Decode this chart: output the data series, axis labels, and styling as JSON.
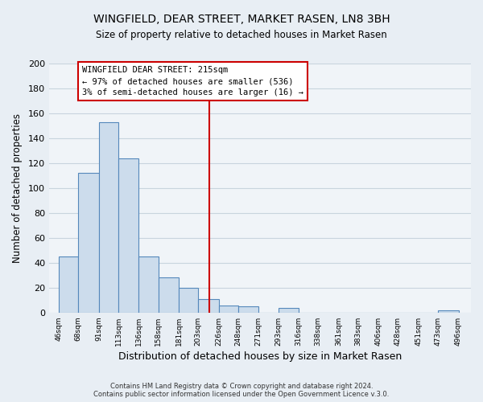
{
  "title": "WINGFIELD, DEAR STREET, MARKET RASEN, LN8 3BH",
  "subtitle": "Size of property relative to detached houses in Market Rasen",
  "xlabel": "Distribution of detached houses by size in Market Rasen",
  "ylabel": "Number of detached properties",
  "bar_left_edges": [
    46,
    68,
    91,
    113,
    136,
    158,
    181,
    203,
    226,
    248,
    271,
    293,
    316,
    338,
    361,
    383,
    406,
    428,
    451,
    473
  ],
  "bar_widths": [
    22,
    23,
    22,
    23,
    22,
    23,
    22,
    23,
    22,
    23,
    22,
    23,
    22,
    23,
    22,
    23,
    22,
    23,
    22,
    23
  ],
  "bar_heights": [
    45,
    112,
    153,
    124,
    45,
    28,
    20,
    11,
    6,
    5,
    0,
    4,
    0,
    0,
    0,
    0,
    0,
    0,
    0,
    2
  ],
  "bar_color": "#ccdcec",
  "bar_edgecolor": "#5588bb",
  "tick_labels": [
    "46sqm",
    "68sqm",
    "91sqm",
    "113sqm",
    "136sqm",
    "158sqm",
    "181sqm",
    "203sqm",
    "226sqm",
    "248sqm",
    "271sqm",
    "293sqm",
    "316sqm",
    "338sqm",
    "361sqm",
    "383sqm",
    "406sqm",
    "428sqm",
    "451sqm",
    "473sqm",
    "496sqm"
  ],
  "tick_positions": [
    46,
    68,
    91,
    113,
    136,
    158,
    181,
    203,
    226,
    248,
    271,
    293,
    316,
    338,
    361,
    383,
    406,
    428,
    451,
    473,
    496
  ],
  "ylim": [
    0,
    200
  ],
  "yticks": [
    0,
    20,
    40,
    60,
    80,
    100,
    120,
    140,
    160,
    180,
    200
  ],
  "vline_x": 215,
  "vline_color": "#cc0000",
  "annotation_title": "WINGFIELD DEAR STREET: 215sqm",
  "annotation_line1": "← 97% of detached houses are smaller (536)",
  "annotation_line2": "3% of semi-detached houses are larger (16) →",
  "footer1": "Contains HM Land Registry data © Crown copyright and database right 2024.",
  "footer2": "Contains public sector information licensed under the Open Government Licence v.3.0.",
  "background_color": "#e8eef4",
  "plot_background": "#f0f4f8",
  "grid_color": "#c8d4de"
}
